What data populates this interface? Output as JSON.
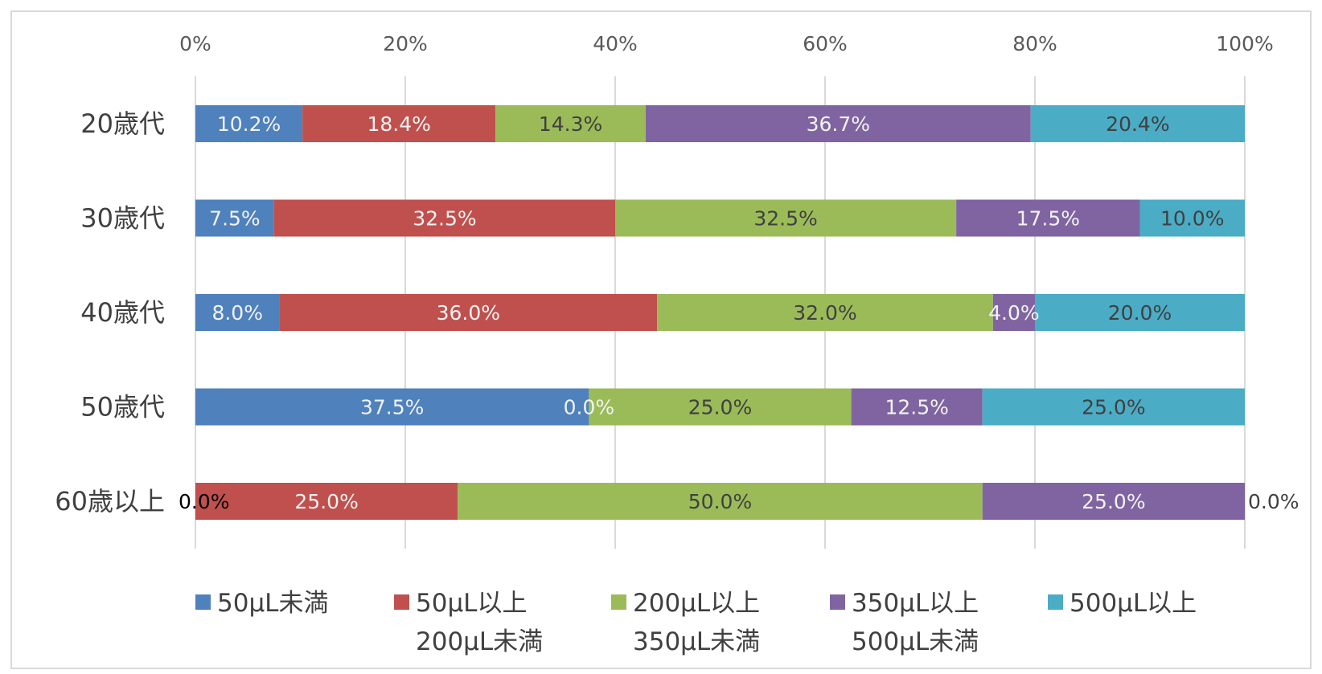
{
  "chart_data": {
    "type": "bar",
    "orientation": "horizontal",
    "stacked": "percent",
    "categories": [
      "20歳代",
      "30歳代",
      "40歳代",
      "50歳代",
      "60歳以上"
    ],
    "series": [
      {
        "name": "50μL未満",
        "legend_lines": [
          "50μL未満"
        ],
        "color": "#4f81bd",
        "values": [
          10.2,
          7.5,
          8.0,
          37.5,
          0.0
        ],
        "labels": [
          "10.2%",
          "7.5%",
          "8.0%",
          "37.5%",
          "0.0%"
        ]
      },
      {
        "name": "50μL以上200μL未満",
        "legend_lines": [
          "50μL以上",
          "200μL未満"
        ],
        "color": "#c0504d",
        "values": [
          18.4,
          32.5,
          36.0,
          0.0,
          25.0
        ],
        "labels": [
          "18.4%",
          "32.5%",
          "36.0%",
          "0.0%",
          "25.0%"
        ]
      },
      {
        "name": "200μL以上350μL未満",
        "legend_lines": [
          "200μL以上",
          "350μL未満"
        ],
        "color": "#9bbb59",
        "values": [
          14.3,
          32.5,
          32.0,
          25.0,
          50.0
        ],
        "labels": [
          "14.3%",
          "32.5%",
          "32.0%",
          "25.0%",
          "50.0%"
        ]
      },
      {
        "name": "350μL以上500μL未満",
        "legend_lines": [
          "350μL以上",
          "500μL未満"
        ],
        "color": "#8064a2",
        "values": [
          36.7,
          17.5,
          4.0,
          12.5,
          25.0
        ],
        "labels": [
          "36.7%",
          "17.5%",
          "4.0%",
          "12.5%",
          "25.0%"
        ]
      },
      {
        "name": "500μL以上",
        "legend_lines": [
          "500μL以上"
        ],
        "color": "#4bacc6",
        "values": [
          20.4,
          10.0,
          20.0,
          25.0,
          0.0
        ],
        "labels": [
          "20.4%",
          "10.0%",
          "20.0%",
          "25.0%",
          "0.0%"
        ]
      }
    ],
    "x_ticks": [
      "0%",
      "20%",
      "40%",
      "60%",
      "80%",
      "100%"
    ],
    "xlim": [
      0,
      100
    ],
    "x_axis_position": "top",
    "grid": true,
    "legend": "bottom",
    "title": "",
    "xlabel": "",
    "ylabel": ""
  }
}
